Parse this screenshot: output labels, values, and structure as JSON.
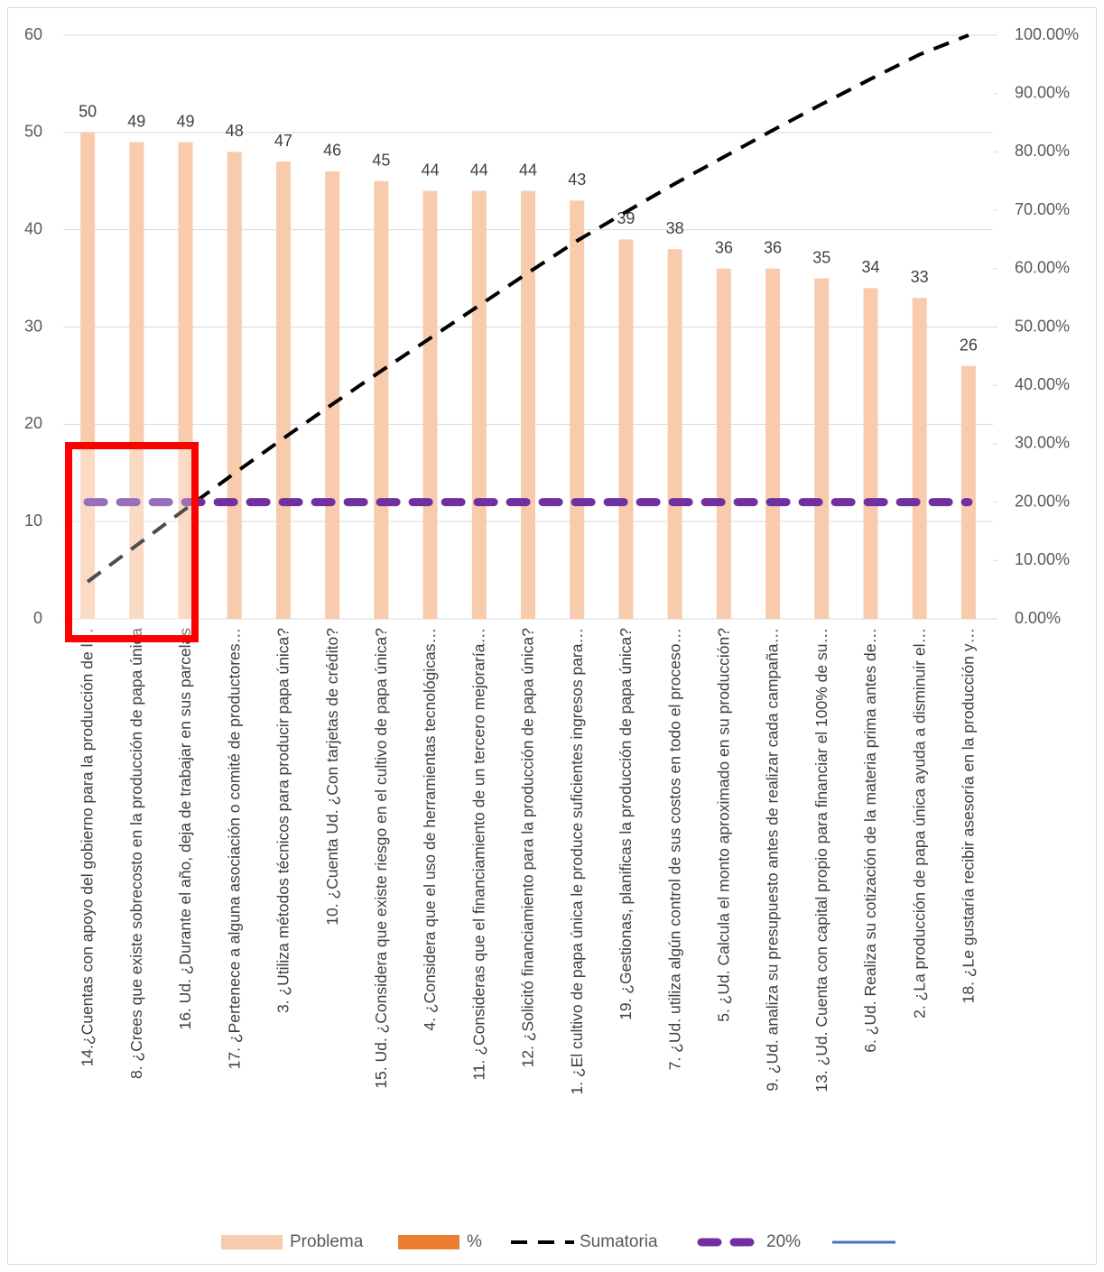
{
  "chart_data": {
    "type": "bar",
    "categories": [
      "14.¿Cuentas con apoyo del gobierno para la producción de l…",
      "8. ¿Crees que existe sobrecosto en la producción de papa única",
      "16. Ud. ¿Durante el año, deja de trabajar en sus parcelas",
      "17. ¿Pertenece a alguna asociación o comité de productores…",
      "3. ¿Utiliza métodos técnicos para producir papa única?",
      "10. ¿Cuenta Ud. ¿Con tarjetas de crédito?",
      "15. Ud.  ¿Considera que existe riesgo en el cultivo de papa única?",
      "4. ¿Considera que el uso de herramientas tecnológicas…",
      "11. ¿Consideras que el financiamiento de un tercero mejoraría…",
      "12. ¿Solicitó financiamiento para la producción de papa única?",
      "1. ¿El cultivo de papa única le produce suficientes ingresos para…",
      "19. ¿Gestionas, planificas la producción de papa única?",
      "7. ¿Ud. utiliza algún control de sus costos en todo el proceso…",
      "5. ¿Ud. Calcula el monto aproximado en su producción?",
      "9. ¿Ud. analiza su presupuesto antes de realizar cada campaña…",
      "13. ¿Ud. Cuenta con capital propio para financiar el 100% de su…",
      "6. ¿Ud. Realiza su cotización de la materia prima antes de…",
      "2. ¿La producción de papa única ayuda a disminuir el…",
      "18. ¿Le gustaría recibir asesoría en la producción y…"
    ],
    "series": [
      {
        "name": "Problema",
        "style": "bar",
        "color": "#f8cbad",
        "values": [
          50,
          49,
          49,
          48,
          47,
          46,
          45,
          44,
          44,
          44,
          43,
          39,
          38,
          36,
          36,
          35,
          34,
          33,
          26
        ]
      },
      {
        "name": "Sumatoria",
        "style": "dashed-line",
        "axis": "y2",
        "color": "#000000",
        "values": [
          6.36,
          12.6,
          18.83,
          24.94,
          30.92,
          36.77,
          42.49,
          48.09,
          53.69,
          59.29,
          64.76,
          69.72,
          74.55,
          79.13,
          83.72,
          88.17,
          92.49,
          96.69,
          100
        ]
      },
      {
        "name": "20%",
        "style": "thick-dashed-line",
        "axis": "y2",
        "color": "#7030a0",
        "values": [
          20,
          20,
          20,
          20,
          20,
          20,
          20,
          20,
          20,
          20,
          20,
          20,
          20,
          20,
          20,
          20,
          20,
          20,
          20
        ]
      }
    ],
    "legend_extra": [
      {
        "name": "%",
        "style": "bar",
        "color": "#ed7d31"
      },
      {
        "name": null,
        "style": "line",
        "color": "#4472c4"
      }
    ],
    "ylim": [
      0,
      60
    ],
    "yticks": [
      0,
      10,
      20,
      30,
      40,
      50,
      60
    ],
    "y2lim": [
      0,
      100
    ],
    "y2ticks": [
      {
        "value": 0,
        "label": "0.00%"
      },
      {
        "value": 10,
        "label": "10.00%"
      },
      {
        "value": 20,
        "label": "20.00%"
      },
      {
        "value": 30,
        "label": "30.00%"
      },
      {
        "value": 40,
        "label": "40.00%"
      },
      {
        "value": 50,
        "label": "50.00%"
      },
      {
        "value": 60,
        "label": "60.00%"
      },
      {
        "value": 70,
        "label": "70.00%"
      },
      {
        "value": 80,
        "label": "80.00%"
      },
      {
        "value": 90,
        "label": "90.00%"
      },
      {
        "value": 100,
        "label": "100.00%"
      }
    ],
    "grid": true,
    "legend": "bottom"
  }
}
